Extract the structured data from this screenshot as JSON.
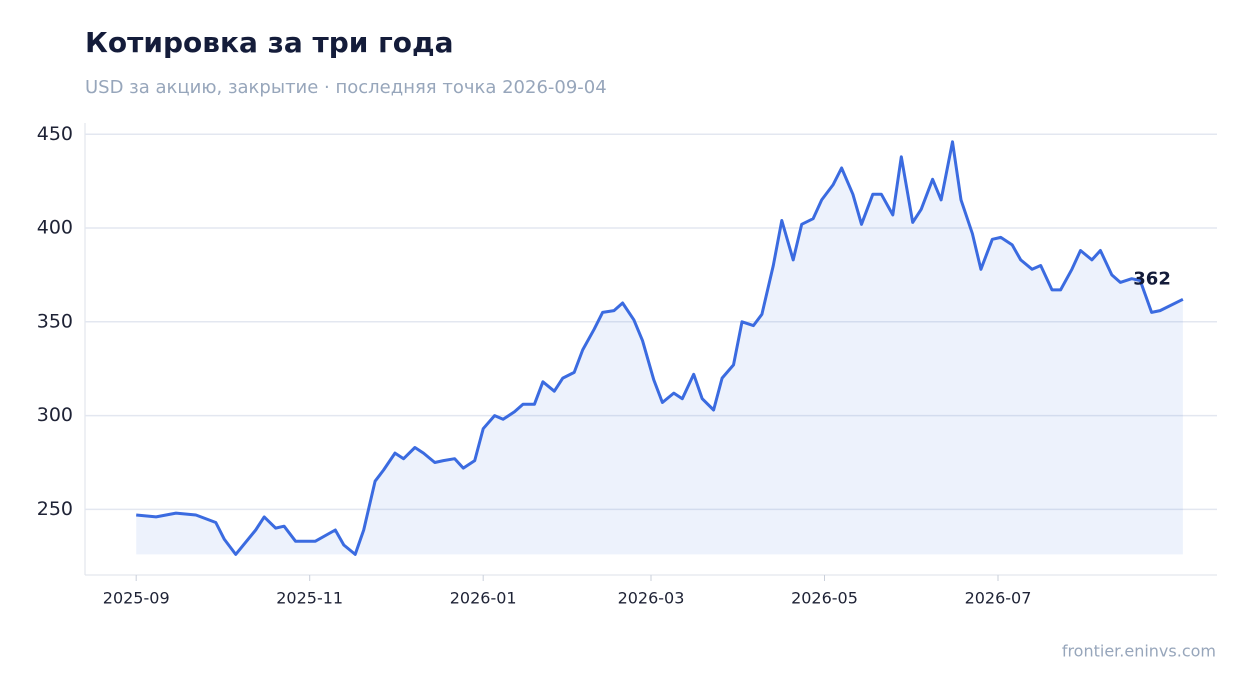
{
  "chart_data": {
    "type": "line",
    "title": "Котировка за три года",
    "subtitle": "USD за акцию, закрытие · последняя точка 2026-09-04",
    "source": "frontier.eninvs.com",
    "x": [
      "2025-09-01",
      "2025-09-08",
      "2025-09-15",
      "2025-09-22",
      "2025-09-29",
      "2025-10-02",
      "2025-10-06",
      "2025-10-13",
      "2025-10-16",
      "2025-10-20",
      "2025-10-23",
      "2025-10-27",
      "2025-11-03",
      "2025-11-10",
      "2025-11-13",
      "2025-11-17",
      "2025-11-20",
      "2025-11-24",
      "2025-11-27",
      "2025-12-01",
      "2025-12-04",
      "2025-12-08",
      "2025-12-11",
      "2025-12-15",
      "2025-12-18",
      "2025-12-22",
      "2025-12-25",
      "2025-12-29",
      "2026-01-01",
      "2026-01-05",
      "2026-01-08",
      "2026-01-12",
      "2026-01-15",
      "2026-01-19",
      "2026-01-22",
      "2026-01-26",
      "2026-01-29",
      "2026-02-02",
      "2026-02-05",
      "2026-02-09",
      "2026-02-12",
      "2026-02-16",
      "2026-02-19",
      "2026-02-23",
      "2026-02-26",
      "2026-03-02",
      "2026-03-05",
      "2026-03-09",
      "2026-03-12",
      "2026-03-16",
      "2026-03-19",
      "2026-03-23",
      "2026-03-26",
      "2026-03-30",
      "2026-04-02",
      "2026-04-06",
      "2026-04-09",
      "2026-04-13",
      "2026-04-16",
      "2026-04-20",
      "2026-04-23",
      "2026-04-27",
      "2026-04-30",
      "2026-05-04",
      "2026-05-07",
      "2026-05-11",
      "2026-05-14",
      "2026-05-18",
      "2026-05-21",
      "2026-05-25",
      "2026-05-28",
      "2026-06-01",
      "2026-06-04",
      "2026-06-08",
      "2026-06-11",
      "2026-06-15",
      "2026-06-18",
      "2026-06-22",
      "2026-06-25",
      "2026-06-29",
      "2026-07-02",
      "2026-07-06",
      "2026-07-09",
      "2026-07-13",
      "2026-07-16",
      "2026-07-20",
      "2026-07-23",
      "2026-07-27",
      "2026-07-30",
      "2026-08-03",
      "2026-08-06",
      "2026-08-10",
      "2026-08-13",
      "2026-08-17",
      "2026-08-20",
      "2026-08-24",
      "2026-08-27",
      "2026-09-04"
    ],
    "series": [
      {
        "name": "Закрытие",
        "color": "#3b6be0",
        "values": [
          247,
          246,
          248,
          247,
          243,
          234,
          226,
          239,
          246,
          240,
          241,
          233,
          233,
          239,
          231,
          226,
          239,
          265,
          271,
          280,
          277,
          283,
          280,
          275,
          276,
          277,
          272,
          276,
          293,
          300,
          298,
          302,
          306,
          306,
          318,
          313,
          320,
          323,
          335,
          346,
          355,
          356,
          360,
          351,
          340,
          319,
          307,
          312,
          309,
          322,
          309,
          303,
          320,
          327,
          350,
          348,
          354,
          380,
          404,
          383,
          402,
          405,
          415,
          423,
          432,
          418,
          402,
          418,
          418,
          407,
          438,
          403,
          410,
          426,
          415,
          446,
          415,
          397,
          378,
          394,
          395,
          391,
          383,
          378,
          380,
          367,
          367,
          378,
          388,
          383,
          388,
          375,
          371,
          373,
          372,
          355,
          356,
          362
        ]
      }
    ],
    "xlim": [
      "2025-08-14",
      "2026-09-16"
    ],
    "xticks": [
      {
        "value": "2025-09-01",
        "label": "2025-09"
      },
      {
        "value": "2025-11-01",
        "label": "2025-11"
      },
      {
        "value": "2026-01-01",
        "label": "2026-01"
      },
      {
        "value": "2026-03-01",
        "label": "2026-03"
      },
      {
        "value": "2026-05-01",
        "label": "2026-05"
      },
      {
        "value": "2026-07-01",
        "label": "2026-07"
      }
    ],
    "ylim": [
      215,
      456
    ],
    "yticks": [
      250,
      300,
      350,
      400,
      450
    ],
    "grid": true
  }
}
